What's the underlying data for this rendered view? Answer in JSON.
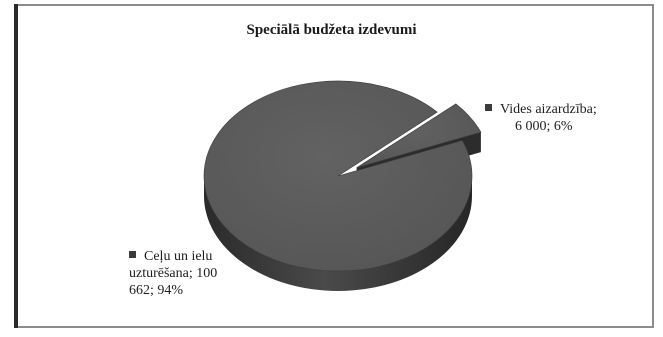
{
  "chart_data": {
    "type": "pie",
    "title": "Speciālā budžeta izdevumi",
    "slices": [
      {
        "label": "Vides aizardzība",
        "value": 6000,
        "value_text": "6 000",
        "percent": "6%",
        "exploded": true
      },
      {
        "label": "Ceļu un ielu uzturēšana",
        "value": 100662,
        "value_text": "100 662",
        "percent": "94%",
        "exploded": false
      }
    ],
    "colors": {
      "slice": "#555555",
      "side": "#303030"
    }
  },
  "labels": {
    "slice_a_line1": "Vides aizardzība;",
    "slice_a_line2": "6 000; 6%",
    "slice_b_line1": "Ceļu un ielu",
    "slice_b_line2": "uzturēšana; 100",
    "slice_b_line3": "662; 94%"
  }
}
